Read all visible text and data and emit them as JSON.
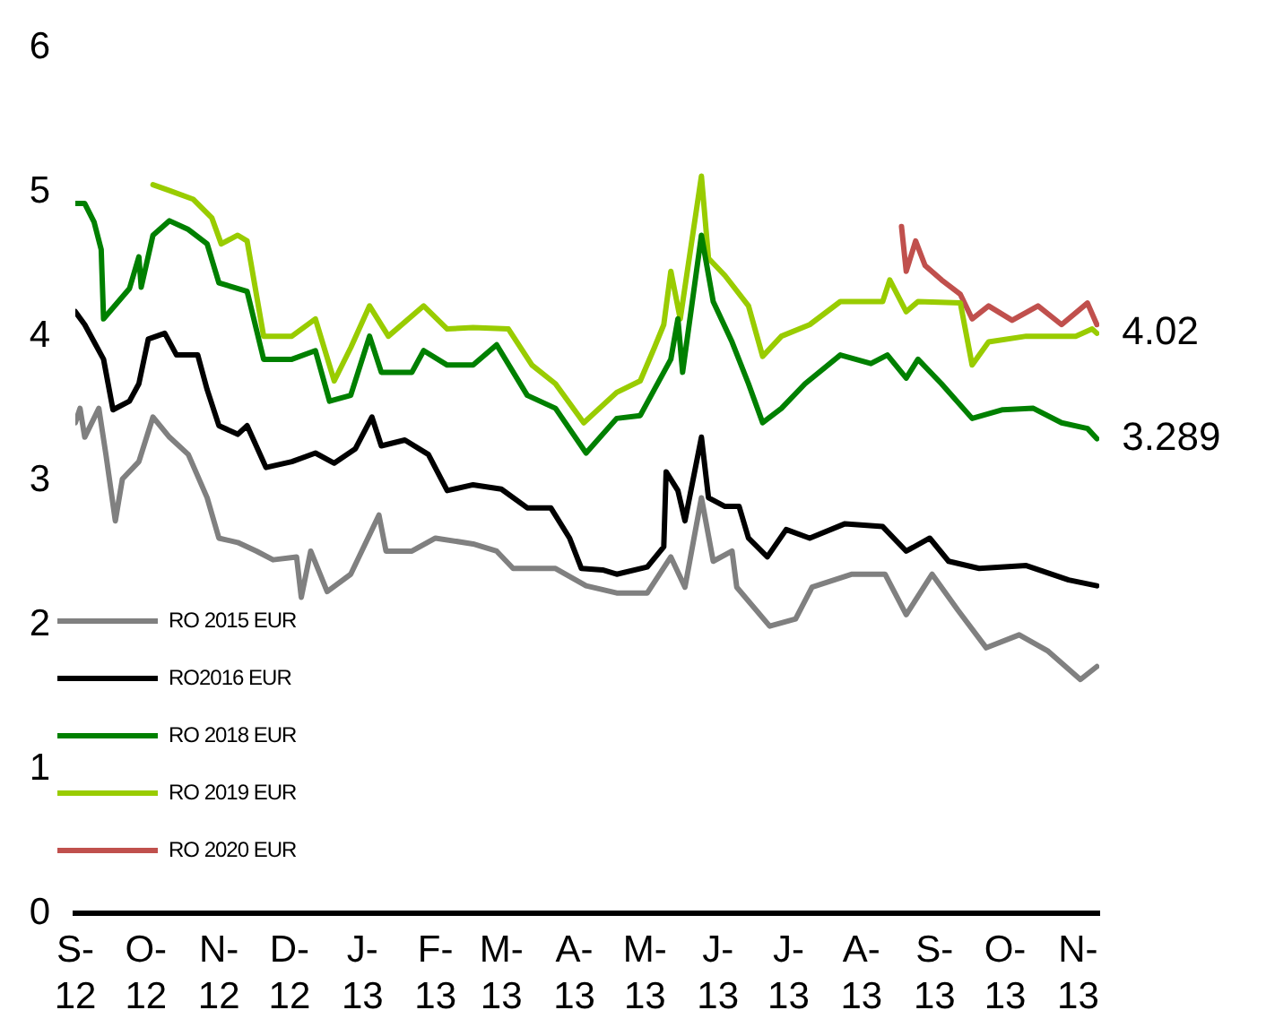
{
  "chart_data": {
    "type": "line",
    "xlim": [
      "2012-09-01",
      "2013-11-10"
    ],
    "ylim": [
      0,
      6
    ],
    "yticks": [
      0,
      1,
      2,
      3,
      4,
      5,
      6
    ],
    "xticks": [
      {
        "value": "2012-09-01",
        "label": "S-\n12"
      },
      {
        "value": "2012-10-01",
        "label": "O-\n12"
      },
      {
        "value": "2012-11-01",
        "label": "N-\n12"
      },
      {
        "value": "2012-12-01",
        "label": "D-\n12"
      },
      {
        "value": "2013-01-01",
        "label": "J-\n13"
      },
      {
        "value": "2013-02-01",
        "label": "F-\n13"
      },
      {
        "value": "2013-03-01",
        "label": "M-\n13"
      },
      {
        "value": "2013-04-01",
        "label": "A-\n13"
      },
      {
        "value": "2013-05-01",
        "label": "M-\n13"
      },
      {
        "value": "2013-06-01",
        "label": "J-\n13"
      },
      {
        "value": "2013-07-01",
        "label": "J-\n13"
      },
      {
        "value": "2013-08-01",
        "label": "A-\n13"
      },
      {
        "value": "2013-09-01",
        "label": "S-\n13"
      },
      {
        "value": "2013-10-01",
        "label": "O-\n13"
      },
      {
        "value": "2013-11-01",
        "label": "N-\n13"
      }
    ],
    "grid": false,
    "legend": "left",
    "marker": "none",
    "line_style": "solid",
    "annotations": [
      {
        "text": "4.02",
        "x": "2013-11-09",
        "y": 4.02
      },
      {
        "text": "3.289",
        "x": "2013-11-09",
        "y": 3.289
      }
    ],
    "series": [
      {
        "name": "RO 2015 EUR",
        "color": "#808080",
        "x": [
          "2012-09-01",
          "2012-09-03",
          "2012-09-05",
          "2012-09-11",
          "2012-09-14",
          "2012-09-18",
          "2012-09-21",
          "2012-09-28",
          "2012-10-04",
          "2012-10-11",
          "2012-10-19",
          "2012-10-27",
          "2012-11-01",
          "2012-11-09",
          "2012-11-17",
          "2012-11-24",
          "2012-12-04",
          "2012-12-06",
          "2012-12-10",
          "2012-12-17",
          "2012-12-27",
          "2013-01-08",
          "2013-01-11",
          "2013-01-22",
          "2013-02-01",
          "2013-02-17",
          "2013-02-27",
          "2013-03-06",
          "2013-03-24",
          "2013-04-06",
          "2013-04-19",
          "2013-05-02",
          "2013-05-12",
          "2013-05-18",
          "2013-05-25",
          "2013-05-30",
          "2013-06-07",
          "2013-06-09",
          "2013-06-23",
          "2013-07-04",
          "2013-07-11",
          "2013-07-28",
          "2013-08-11",
          "2013-08-20",
          "2013-08-31",
          "2013-09-11",
          "2013-09-23",
          "2013-10-07",
          "2013-10-19",
          "2013-11-02",
          "2013-11-09"
        ],
        "values": [
          3.4,
          3.5,
          3.3,
          3.5,
          3.18,
          2.72,
          3.01,
          3.13,
          3.44,
          3.3,
          3.18,
          2.88,
          2.6,
          2.57,
          2.51,
          2.45,
          2.47,
          2.19,
          2.51,
          2.23,
          2.35,
          2.76,
          2.51,
          2.51,
          2.6,
          2.56,
          2.51,
          2.39,
          2.39,
          2.27,
          2.22,
          2.22,
          2.47,
          2.26,
          2.88,
          2.44,
          2.51,
          2.26,
          1.99,
          2.04,
          2.26,
          2.35,
          2.35,
          2.07,
          2.35,
          2.1,
          1.84,
          1.93,
          1.82,
          1.62,
          1.71
        ]
      },
      {
        "name": "RO2016 EUR",
        "color": "#000000",
        "x": [
          "2012-09-01",
          "2012-09-05",
          "2012-09-13",
          "2012-09-17",
          "2012-09-24",
          "2012-09-28",
          "2012-10-02",
          "2012-10-09",
          "2012-10-14",
          "2012-10-23",
          "2012-10-27",
          "2012-11-01",
          "2012-11-09",
          "2012-11-13",
          "2012-11-21",
          "2012-12-02",
          "2012-12-12",
          "2012-12-20",
          "2012-12-29",
          "2013-01-05",
          "2013-01-09",
          "2013-01-19",
          "2013-01-29",
          "2013-02-06",
          "2013-02-17",
          "2013-03-01",
          "2013-03-12",
          "2013-03-22",
          "2013-03-30",
          "2013-04-04",
          "2013-04-13",
          "2013-04-19",
          "2013-05-02",
          "2013-05-09",
          "2013-05-10",
          "2013-05-15",
          "2013-05-18",
          "2013-05-25",
          "2013-05-28",
          "2013-06-04",
          "2013-06-10",
          "2013-06-14",
          "2013-06-22",
          "2013-06-30",
          "2013-07-10",
          "2013-07-25",
          "2013-08-10",
          "2013-08-20",
          "2013-08-30",
          "2013-09-07",
          "2013-09-20",
          "2013-10-10",
          "2013-10-28",
          "2013-11-09"
        ],
        "values": [
          4.17,
          4.08,
          3.84,
          3.49,
          3.55,
          3.67,
          3.98,
          4.02,
          3.87,
          3.87,
          3.63,
          3.38,
          3.32,
          3.38,
          3.09,
          3.13,
          3.19,
          3.12,
          3.22,
          3.44,
          3.24,
          3.28,
          3.18,
          2.93,
          2.97,
          2.94,
          2.81,
          2.81,
          2.6,
          2.39,
          2.38,
          2.35,
          2.4,
          2.54,
          3.06,
          2.93,
          2.72,
          3.3,
          2.88,
          2.82,
          2.82,
          2.6,
          2.47,
          2.66,
          2.6,
          2.7,
          2.68,
          2.51,
          2.6,
          2.44,
          2.39,
          2.41,
          2.31,
          2.27
        ]
      },
      {
        "name": "RO 2018 EUR",
        "color": "#008000",
        "x": [
          "2012-09-01",
          "2012-09-05",
          "2012-09-09",
          "2012-09-12",
          "2012-09-13",
          "2012-09-24",
          "2012-09-28",
          "2012-09-29",
          "2012-10-04",
          "2012-10-11",
          "2012-10-19",
          "2012-10-27",
          "2012-11-01",
          "2012-11-13",
          "2012-11-20",
          "2012-12-02",
          "2012-12-12",
          "2012-12-18",
          "2012-12-27",
          "2013-01-04",
          "2013-01-09",
          "2013-01-22",
          "2013-01-27",
          "2013-02-06",
          "2013-02-17",
          "2013-02-27",
          "2013-03-12",
          "2013-03-24",
          "2013-04-06",
          "2013-04-19",
          "2013-04-29",
          "2013-05-05",
          "2013-05-12",
          "2013-05-15",
          "2013-05-17",
          "2013-05-25",
          "2013-05-30",
          "2013-06-07",
          "2013-06-14",
          "2013-06-20",
          "2013-06-28",
          "2013-07-08",
          "2013-07-23",
          "2013-08-05",
          "2013-08-12",
          "2013-08-20",
          "2013-08-25",
          "2013-09-04",
          "2013-09-17",
          "2013-09-30",
          "2013-10-13",
          "2013-10-25",
          "2013-11-05",
          "2013-11-09"
        ],
        "values": [
          4.92,
          4.92,
          4.79,
          4.6,
          4.12,
          4.33,
          4.55,
          4.34,
          4.7,
          4.8,
          4.74,
          4.64,
          4.37,
          4.31,
          3.84,
          3.84,
          3.9,
          3.55,
          3.59,
          4.0,
          3.75,
          3.75,
          3.9,
          3.8,
          3.8,
          3.94,
          3.59,
          3.5,
          3.19,
          3.43,
          3.45,
          3.63,
          3.84,
          4.12,
          3.75,
          4.7,
          4.24,
          3.96,
          3.67,
          3.4,
          3.5,
          3.67,
          3.87,
          3.81,
          3.87,
          3.71,
          3.84,
          3.67,
          3.43,
          3.49,
          3.5,
          3.4,
          3.36,
          3.289
        ]
      },
      {
        "name": "RO 2019 EUR",
        "color": "#99cc00",
        "x": [
          "2012-10-04",
          "2012-10-11",
          "2012-10-21",
          "2012-10-29",
          "2012-11-02",
          "2012-11-09",
          "2012-11-13",
          "2012-11-20",
          "2012-12-02",
          "2012-12-12",
          "2012-12-20",
          "2012-12-27",
          "2013-01-04",
          "2013-01-12",
          "2013-01-27",
          "2013-02-06",
          "2013-02-17",
          "2013-03-04",
          "2013-03-14",
          "2013-03-24",
          "2013-04-05",
          "2013-04-19",
          "2013-04-29",
          "2013-05-05",
          "2013-05-09",
          "2013-05-12",
          "2013-05-16",
          "2013-05-25",
          "2013-05-28",
          "2013-06-04",
          "2013-06-14",
          "2013-06-20",
          "2013-06-28",
          "2013-07-10",
          "2013-07-23",
          "2013-08-10",
          "2013-08-13",
          "2013-08-20",
          "2013-08-25",
          "2013-09-12",
          "2013-09-17",
          "2013-09-24",
          "2013-10-10",
          "2013-10-31",
          "2013-11-07",
          "2013-11-09"
        ],
        "values": [
          5.05,
          5.01,
          4.95,
          4.82,
          4.64,
          4.7,
          4.66,
          4.0,
          4.0,
          4.12,
          3.69,
          3.92,
          4.21,
          4.0,
          4.21,
          4.05,
          4.06,
          4.05,
          3.8,
          3.67,
          3.4,
          3.61,
          3.69,
          3.92,
          4.08,
          4.45,
          4.12,
          5.11,
          4.54,
          4.42,
          4.21,
          3.86,
          4.0,
          4.08,
          4.24,
          4.24,
          4.39,
          4.17,
          4.24,
          4.23,
          3.8,
          3.96,
          4.0,
          4.0,
          4.05,
          4.02
        ]
      },
      {
        "name": "RO 2020 EUR",
        "color": "#c0504d",
        "x": [
          "2013-08-18",
          "2013-08-20",
          "2013-08-24",
          "2013-08-28",
          "2013-09-04",
          "2013-09-12",
          "2013-09-17",
          "2013-09-24",
          "2013-10-04",
          "2013-10-15",
          "2013-10-25",
          "2013-11-05",
          "2013-11-09"
        ],
        "values": [
          4.76,
          4.45,
          4.66,
          4.49,
          4.39,
          4.29,
          4.12,
          4.21,
          4.11,
          4.21,
          4.08,
          4.23,
          4.08
        ]
      }
    ]
  }
}
